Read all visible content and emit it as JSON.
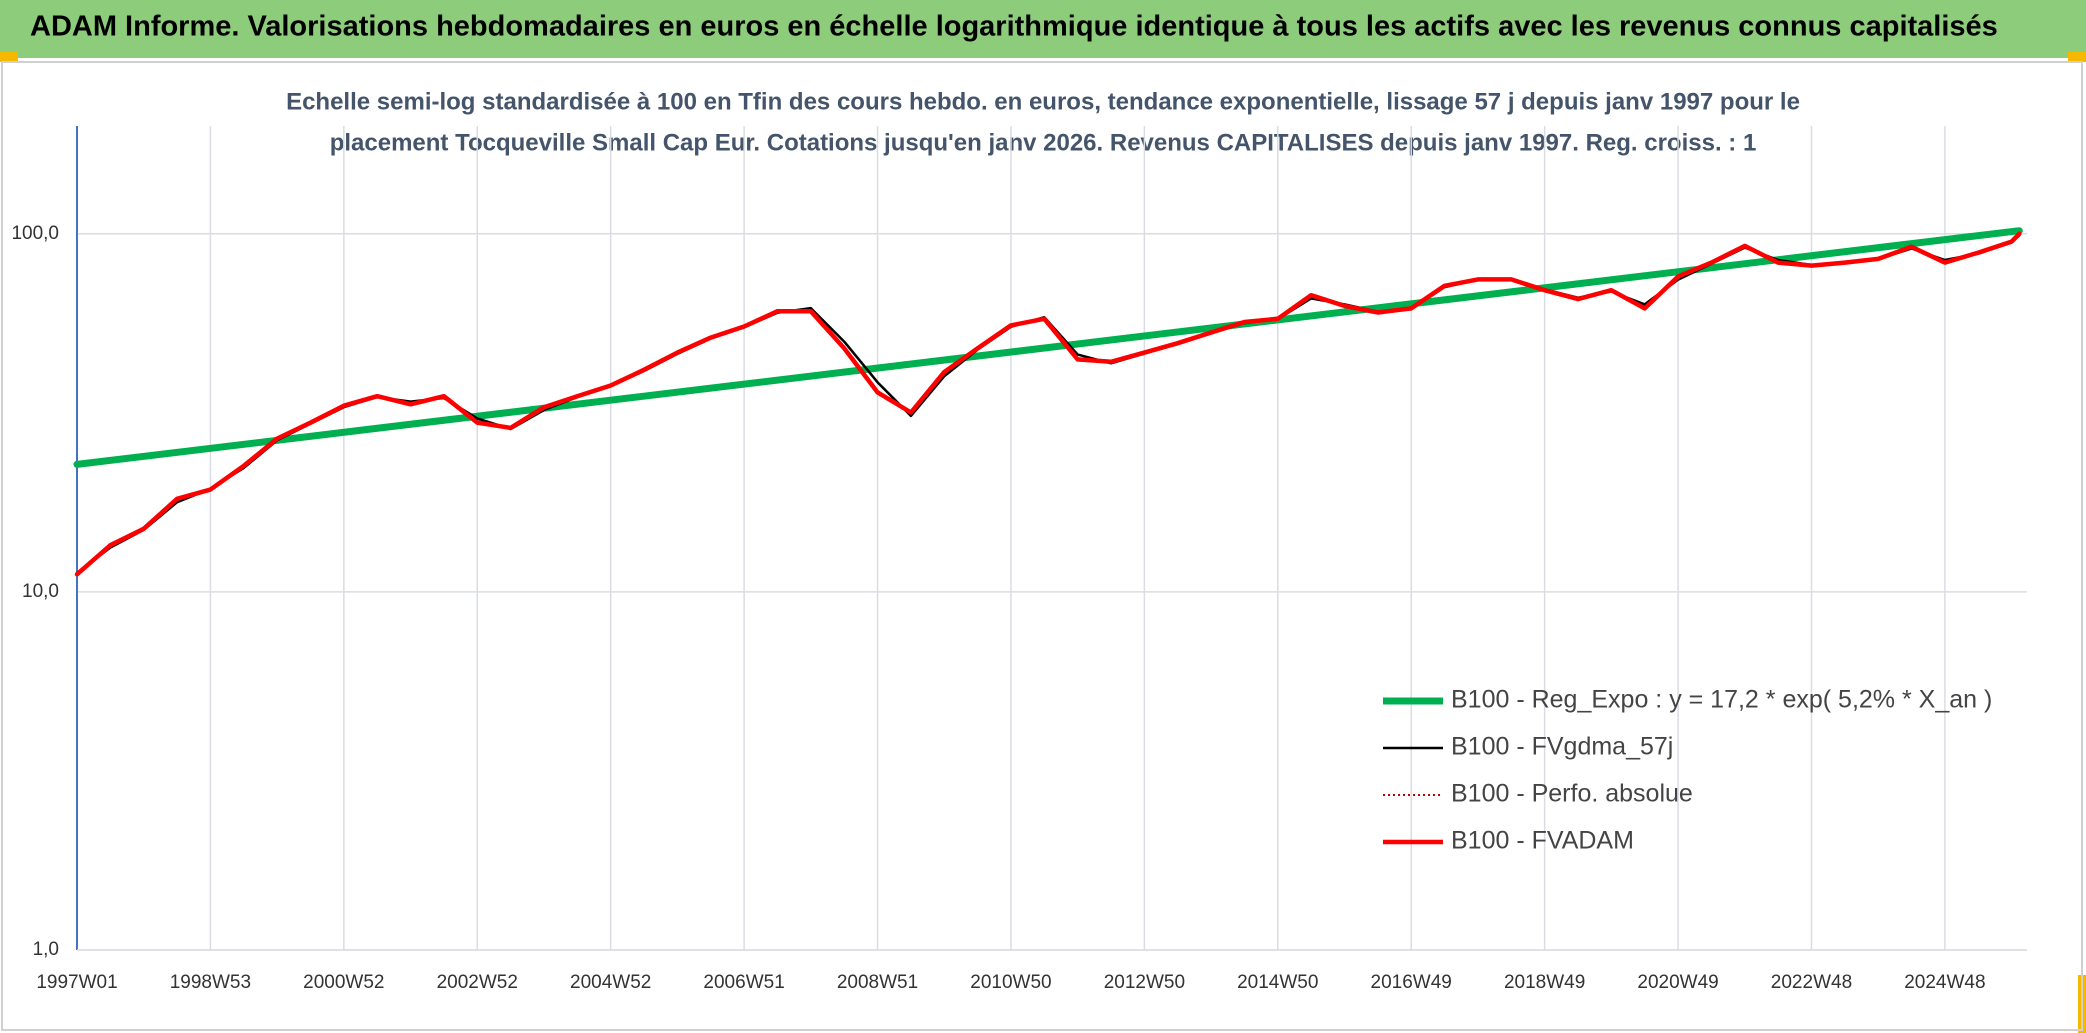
{
  "chart_data": {
    "type": "line",
    "title": "ADAM Informe. Valorisations hebdomadaires en euros en échelle logarithmique identique à tous les actifs avec les revenus connus capitalisés",
    "subtitle": [
      "Echelle semi-log standardisée à 100 en Tfin des cours hebdo. en euros, tendance exponentielle, lissage 57 j depuis janv 1997 pour le",
      "placement Tocqueville Small Cap Eur. Cotations jusqu'en janv 2026. Revenus CAPITALISES depuis janv 1997. Reg. croiss. : 1"
    ],
    "log_y": true,
    "grid": true,
    "legend": "lower right",
    "xlim": [
      0,
      1520
    ],
    "xticks": [
      {
        "value": 0,
        "label": "1997W01"
      },
      {
        "value": 104,
        "label": "1998W53"
      },
      {
        "value": 208,
        "label": "2000W52"
      },
      {
        "value": 312,
        "label": "2002W52"
      },
      {
        "value": 416,
        "label": "2004W52"
      },
      {
        "value": 520,
        "label": "2006W51"
      },
      {
        "value": 624,
        "label": "2008W51"
      },
      {
        "value": 728,
        "label": "2010W50"
      },
      {
        "value": 832,
        "label": "2012W50"
      },
      {
        "value": 936,
        "label": "2014W50"
      },
      {
        "value": 1040,
        "label": "2016W49"
      },
      {
        "value": 1144,
        "label": "2018W49"
      },
      {
        "value": 1248,
        "label": "2020W49"
      },
      {
        "value": 1352,
        "label": "2022W48"
      },
      {
        "value": 1456,
        "label": "2024W48"
      }
    ],
    "ylim": [
      1,
      200
    ],
    "yticks": [
      {
        "value": 1,
        "label": "1,0"
      },
      {
        "value": 10,
        "label": "10,0"
      },
      {
        "value": 100,
        "label": "100,0"
      }
    ],
    "series": [
      {
        "name": "B100 - Reg_Expo : y = 17,2 * exp( 5,2% *  X_an )",
        "color": "#00b050",
        "style": "thick",
        "x": [
          0,
          1514
        ],
        "values": [
          22.7,
          102.0
        ]
      },
      {
        "name": "B100 - FVgdma_57j",
        "color": "#000000",
        "style": "thin",
        "x": [
          0,
          26,
          52,
          78,
          104,
          130,
          156,
          182,
          208,
          234,
          260,
          286,
          312,
          338,
          364,
          390,
          416,
          442,
          468,
          494,
          520,
          546,
          572,
          598,
          624,
          650,
          676,
          702,
          728,
          754,
          780,
          806,
          832,
          858,
          884,
          910,
          936,
          962,
          988,
          1014,
          1040,
          1066,
          1092,
          1118,
          1144,
          1170,
          1196,
          1222,
          1248,
          1274,
          1300,
          1326,
          1352,
          1378,
          1404,
          1430,
          1456,
          1482,
          1508,
          1514
        ],
        "values": [
          11.3,
          13.3,
          14.9,
          17.8,
          19.4,
          22.2,
          26.5,
          29.5,
          32.8,
          35.0,
          34.0,
          34.8,
          30.5,
          28.5,
          32.2,
          35.0,
          37.5,
          41.4,
          46.2,
          51.0,
          54.8,
          60.2,
          62.0,
          50.0,
          38.5,
          31.0,
          40.0,
          47.5,
          55.0,
          58.5,
          46.0,
          43.5,
          46.3,
          49.2,
          52.7,
          56.3,
          57.8,
          66.0,
          63.5,
          60.6,
          61.7,
          71.0,
          74.4,
          74.8,
          70.0,
          66.3,
          69.0,
          63.5,
          74.5,
          82.5,
          91.5,
          84.5,
          81.8,
          83.0,
          85.0,
          91.0,
          84.5,
          88.0,
          94.5,
          99.0
        ]
      },
      {
        "name": "B100 - Perfo. absolue",
        "color": "#c00000",
        "style": "dotted",
        "x": [
          0,
          26,
          52,
          78,
          104,
          130,
          156,
          182,
          208,
          234,
          260,
          286,
          312,
          338,
          364,
          390,
          416,
          442,
          468,
          494,
          520,
          546,
          572,
          598,
          624,
          650,
          676,
          702,
          728,
          754,
          780,
          806,
          832,
          858,
          884,
          910,
          936,
          962,
          988,
          1014,
          1040,
          1066,
          1092,
          1118,
          1144,
          1170,
          1196,
          1222,
          1248,
          1274,
          1300,
          1326,
          1352,
          1378,
          1404,
          1430,
          1456,
          1482,
          1508,
          1514
        ],
        "values": [
          11.2,
          13.5,
          15.0,
          18.2,
          19.3,
          22.5,
          26.8,
          29.7,
          33.1,
          35.2,
          33.4,
          35.2,
          29.7,
          28.7,
          32.8,
          35.2,
          37.7,
          41.7,
          46.6,
          51.3,
          55.1,
          60.8,
          60.8,
          47.9,
          36.1,
          31.7,
          41.1,
          47.9,
          55.5,
          57.9,
          44.6,
          43.9,
          46.6,
          49.5,
          53.0,
          56.7,
          57.9,
          67.4,
          62.9,
          60.3,
          61.9,
          71.6,
          74.6,
          74.6,
          69.6,
          65.7,
          69.6,
          61.9,
          76.0,
          83.1,
          92.5,
          83.1,
          81.5,
          83.1,
          85.1,
          92.0,
          83.1,
          88.6,
          95.1,
          100
        ]
      },
      {
        "name": "B100 - FVADAM",
        "color": "#ff0000",
        "style": "medium",
        "x": [
          0,
          26,
          52,
          78,
          104,
          130,
          156,
          182,
          208,
          234,
          260,
          286,
          312,
          338,
          364,
          390,
          416,
          442,
          468,
          494,
          520,
          546,
          572,
          598,
          624,
          650,
          676,
          702,
          728,
          754,
          780,
          806,
          832,
          858,
          884,
          910,
          936,
          962,
          988,
          1014,
          1040,
          1066,
          1092,
          1118,
          1144,
          1170,
          1196,
          1222,
          1248,
          1274,
          1300,
          1326,
          1352,
          1378,
          1404,
          1430,
          1456,
          1482,
          1508,
          1514
        ],
        "values": [
          11.2,
          13.5,
          15.0,
          18.2,
          19.3,
          22.5,
          26.8,
          29.7,
          33.1,
          35.2,
          33.4,
          35.2,
          29.7,
          28.7,
          32.8,
          35.2,
          37.7,
          41.7,
          46.6,
          51.3,
          55.1,
          60.8,
          60.8,
          47.9,
          36.1,
          31.7,
          41.1,
          47.9,
          55.5,
          57.9,
          44.6,
          43.9,
          46.6,
          49.5,
          53.0,
          56.7,
          57.9,
          67.4,
          62.9,
          60.3,
          61.9,
          71.6,
          74.6,
          74.6,
          69.6,
          65.7,
          69.6,
          61.9,
          76.0,
          83.1,
          92.5,
          83.1,
          81.5,
          83.1,
          85.1,
          92.0,
          83.1,
          88.6,
          95.1,
          100
        ]
      }
    ]
  }
}
